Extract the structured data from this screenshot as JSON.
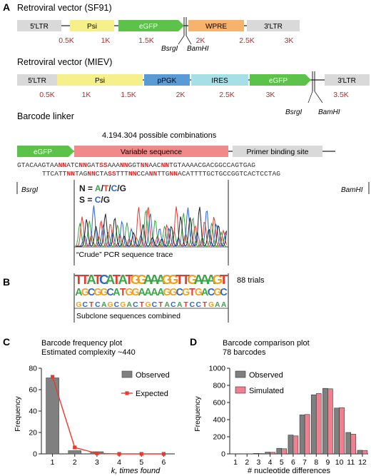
{
  "panels": {
    "a": "A",
    "b": "B",
    "c": "C",
    "d": "D"
  },
  "sf91": {
    "title": "Retroviral vector (SF91)",
    "segments": [
      {
        "label": "5'LTR",
        "color": "#d9d9d9"
      },
      {
        "label": "Psi",
        "color": "#f5f08a"
      },
      {
        "label": "eGFP",
        "color": "#5cc24a"
      },
      {
        "label": "WPRE",
        "color": "#f7b36b"
      },
      {
        "label": "3'LTR",
        "color": "#d9d9d9"
      }
    ],
    "ticks": [
      "0.5K",
      "1K",
      "1.5K",
      "2K",
      "2.5K",
      "3K"
    ],
    "site1": "BsrgI",
    "site2": "BamHI"
  },
  "miev": {
    "title": "Retroviral vector (MIEV)",
    "segments": [
      {
        "label": "5'LTR",
        "color": "#d9d9d9"
      },
      {
        "label": "Psi",
        "color": "#f5f08a"
      },
      {
        "label": "pPGK",
        "color": "#5b9bd5"
      },
      {
        "label": "IRES",
        "color": "#a6dfe6"
      },
      {
        "label": "eGFP",
        "color": "#5cc24a"
      },
      {
        "label": "3'LTR",
        "color": "#d9d9d9"
      }
    ],
    "ticks": [
      "0.5K",
      "1K",
      "1.5K",
      "2K",
      "2.5K",
      "3K",
      "3.5K"
    ],
    "site1": "BsrgI",
    "site2": "BamHI"
  },
  "linker": {
    "title": "Barcode linker",
    "combinations": "4.194.304 possible combinations",
    "egfp": "eGFP",
    "variable": "Variable sequence",
    "primer": "Primer binding site",
    "seq_top": [
      {
        "t": "GTACAAGTAA",
        "c": "n"
      },
      {
        "t": "NN",
        "c": "r"
      },
      {
        "t": "ATC",
        "c": "n"
      },
      {
        "t": "NN",
        "c": "r"
      },
      {
        "t": "GAT",
        "c": "n"
      },
      {
        "t": "SS",
        "c": "r"
      },
      {
        "t": "AAA",
        "c": "n"
      },
      {
        "t": "NN",
        "c": "r"
      },
      {
        "t": "GGT",
        "c": "n"
      },
      {
        "t": "NN",
        "c": "r"
      },
      {
        "t": "AAC",
        "c": "n"
      },
      {
        "t": "NN",
        "c": "r"
      },
      {
        "t": "TGTAAAACGACGGCCAGTGAG",
        "c": "n"
      }
    ],
    "seq_bottom": [
      {
        "t": "TTCATT",
        "c": "n"
      },
      {
        "t": "NN",
        "c": "r"
      },
      {
        "t": "TAG",
        "c": "n"
      },
      {
        "t": "NN",
        "c": "r"
      },
      {
        "t": "CTA",
        "c": "n"
      },
      {
        "t": "SS",
        "c": "r"
      },
      {
        "t": "TTT",
        "c": "n"
      },
      {
        "t": "NN",
        "c": "r"
      },
      {
        "t": "CCA",
        "c": "n"
      },
      {
        "t": "NN",
        "c": "r"
      },
      {
        "t": "TTG",
        "c": "n"
      },
      {
        "t": "NN",
        "c": "r"
      },
      {
        "t": "ACATTTTGCTGCCGGTCACTCCTAG",
        "c": "n"
      }
    ],
    "site_left": "BsrgI",
    "site_right": "BamHI",
    "legend_n": [
      {
        "t": "N = ",
        "color": "#1a1a1a"
      },
      {
        "t": "A",
        "color": "#3aa648"
      },
      {
        "t": "/",
        "color": "#1a1a1a"
      },
      {
        "t": "T",
        "color": "#e03c31"
      },
      {
        "t": "/",
        "color": "#1a1a1a"
      },
      {
        "t": "C",
        "color": "#2f66c4"
      },
      {
        "t": "/",
        "color": "#1a1a1a"
      },
      {
        "t": "G",
        "color": "#222222"
      }
    ],
    "legend_s": [
      {
        "t": "S = ",
        "color": "#1a1a1a"
      },
      {
        "t": "C",
        "color": "#2f66c4"
      },
      {
        "t": "/",
        "color": "#1a1a1a"
      },
      {
        "t": "G",
        "color": "#222222"
      }
    ],
    "trace_caption": "“Crude” PCR sequence trace"
  },
  "subclone": {
    "trials": "88 trials",
    "caption": "Subclone sequences combined",
    "logo_rows": [
      [
        {
          "t": "T",
          "c": "#e03c31"
        },
        {
          "t": "T",
          "c": "#e03c31"
        },
        {
          "t": "A",
          "c": "#3aa648"
        },
        {
          "t": "T",
          "c": "#e03c31"
        },
        {
          "t": "C",
          "c": "#2f66c4"
        },
        {
          "t": "A",
          "c": "#3aa648"
        },
        {
          "t": "T",
          "c": "#e03c31"
        },
        {
          "t": "A",
          "c": "#3aa648"
        },
        {
          "t": "T",
          "c": "#e03c31"
        },
        {
          "t": "G",
          "c": "#f0a020"
        },
        {
          "t": "G",
          "c": "#f0a020"
        },
        {
          "t": "A",
          "c": "#3aa648"
        },
        {
          "t": "A",
          "c": "#3aa648"
        },
        {
          "t": "A",
          "c": "#3aa648"
        },
        {
          "t": "G",
          "c": "#f0a020"
        },
        {
          "t": "G",
          "c": "#f0a020"
        },
        {
          "t": "T",
          "c": "#e03c31"
        },
        {
          "t": "T",
          "c": "#e03c31"
        },
        {
          "t": "G",
          "c": "#f0a020"
        },
        {
          "t": "A",
          "c": "#3aa648"
        },
        {
          "t": "A",
          "c": "#3aa648"
        },
        {
          "t": "A",
          "c": "#3aa648"
        },
        {
          "t": "G",
          "c": "#f0a020"
        },
        {
          "t": "T",
          "c": "#e03c31"
        }
      ],
      [
        {
          "t": "A",
          "c": "#3aa648"
        },
        {
          "t": "G",
          "c": "#f0a020"
        },
        {
          "t": "C",
          "c": "#2f66c4"
        },
        {
          "t": "G",
          "c": "#f0a020"
        },
        {
          "t": "G",
          "c": "#f0a020"
        },
        {
          "t": "C",
          "c": "#2f66c4"
        },
        {
          "t": "A",
          "c": "#3aa648"
        },
        {
          "t": "T",
          "c": "#e03c31"
        },
        {
          "t": "G",
          "c": "#f0a020"
        },
        {
          "t": "G",
          "c": "#f0a020"
        },
        {
          "t": "A",
          "c": "#3aa648"
        },
        {
          "t": "A",
          "c": "#3aa648"
        },
        {
          "t": "A",
          "c": "#3aa648"
        },
        {
          "t": "A",
          "c": "#3aa648"
        },
        {
          "t": "G",
          "c": "#f0a020"
        },
        {
          "t": "G",
          "c": "#f0a020"
        },
        {
          "t": "C",
          "c": "#2f66c4"
        },
        {
          "t": "G",
          "c": "#f0a020"
        },
        {
          "t": "T",
          "c": "#e03c31"
        },
        {
          "t": "G",
          "c": "#f0a020"
        },
        {
          "t": "A",
          "c": "#3aa648"
        },
        {
          "t": "C",
          "c": "#2f66c4"
        },
        {
          "t": "G",
          "c": "#f0a020"
        },
        {
          "t": "C",
          "c": "#2f66c4"
        }
      ],
      [
        {
          "t": "G",
          "c": "#f0a020"
        },
        {
          "t": "C",
          "c": "#2f66c4"
        },
        {
          "t": "T",
          "c": "#e03c31"
        },
        {
          "t": "C",
          "c": "#2f66c4"
        },
        {
          "t": "A",
          "c": "#3aa648"
        },
        {
          "t": "G",
          "c": "#f0a020"
        },
        {
          "t": "C",
          "c": "#2f66c4"
        },
        {
          "t": "G",
          "c": "#f0a020"
        },
        {
          "t": "A",
          "c": "#3aa648"
        },
        {
          "t": "C",
          "c": "#2f66c4"
        },
        {
          "t": "T",
          "c": "#e03c31"
        },
        {
          "t": "G",
          "c": "#f0a020"
        },
        {
          "t": "C",
          "c": "#2f66c4"
        },
        {
          "t": "T",
          "c": "#e03c31"
        },
        {
          "t": "A",
          "c": "#3aa648"
        },
        {
          "t": "C",
          "c": "#2f66c4"
        },
        {
          "t": "A",
          "c": "#3aa648"
        },
        {
          "t": "T",
          "c": "#e03c31"
        },
        {
          "t": "C",
          "c": "#2f66c4"
        },
        {
          "t": "C",
          "c": "#2f66c4"
        },
        {
          "t": "T",
          "c": "#e03c31"
        },
        {
          "t": "G",
          "c": "#f0a020"
        },
        {
          "t": "A",
          "c": "#3aa648"
        },
        {
          "t": "A",
          "c": "#3aa648"
        }
      ]
    ]
  },
  "chart_data": [
    {
      "type": "bar",
      "title": "Barcode frequency plot",
      "subtitle": "Estimated complexity ~440",
      "xlabel": "k, times found",
      "ylabel": "Frequency",
      "categories": [
        "1",
        "2",
        "3",
        "4",
        "5",
        "6"
      ],
      "ylim": [
        0,
        80
      ],
      "yticks": [
        "0",
        "20",
        "40",
        "60",
        "80"
      ],
      "grid": false,
      "legend": "top-right",
      "series": [
        {
          "name": "Observed",
          "type": "bar",
          "color": "#808080",
          "values": [
            71,
            3,
            2,
            0,
            0,
            0
          ]
        },
        {
          "name": "Expected",
          "type": "line",
          "color": "#e63b2e",
          "values": [
            72,
            6,
            0.5,
            0,
            0,
            0
          ]
        }
      ]
    },
    {
      "type": "bar",
      "title": "Barcode comparison plot",
      "subtitle": "78 barcodes",
      "xlabel": "# nucleotide differences",
      "ylabel": "Frequency",
      "categories": [
        "1",
        "2",
        "3",
        "4",
        "5",
        "6",
        "7",
        "8",
        "9",
        "10",
        "11",
        "12"
      ],
      "ylim": [
        0,
        1000
      ],
      "yticks": [
        "0",
        "200",
        "400",
        "600",
        "800",
        "1000"
      ],
      "grid": false,
      "legend": "top-left",
      "series": [
        {
          "name": "Observed",
          "color": "#7f7f7f",
          "values": [
            1,
            2,
            5,
            20,
            65,
            220,
            455,
            690,
            765,
            535,
            250,
            42
          ]
        },
        {
          "name": "Simulated",
          "color": "#f08090",
          "values": [
            0,
            1,
            4,
            18,
            60,
            210,
            460,
            705,
            760,
            540,
            230,
            40
          ]
        }
      ]
    }
  ]
}
